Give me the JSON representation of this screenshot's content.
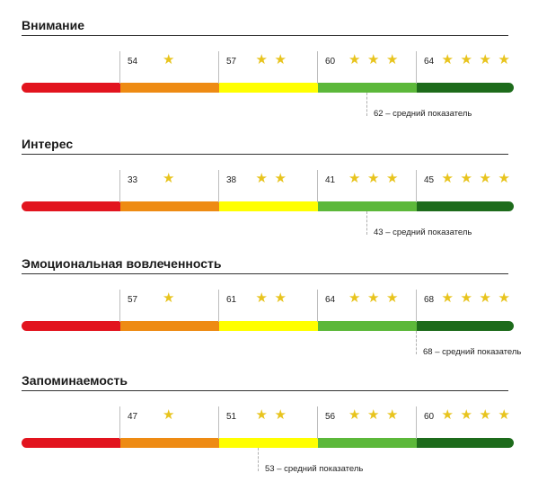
{
  "colors": {
    "red": "#e2141e",
    "orange": "#ee8b13",
    "yellow": "#ffff00",
    "lightgreen": "#5cb83a",
    "darkgreen": "#1d6b1b",
    "star": "#e8c41e"
  },
  "chart_data": [
    {
      "type": "bar",
      "title": "Внимание",
      "thresholds": [
        54,
        57,
        60,
        64
      ],
      "stars": [
        1,
        2,
        3,
        4
      ],
      "average": 62,
      "average_label": "62 – средний показатель"
    },
    {
      "type": "bar",
      "title": "Интерес",
      "thresholds": [
        33,
        38,
        41,
        45
      ],
      "stars": [
        1,
        2,
        3,
        4
      ],
      "average": 43,
      "average_label": "43 – средний показатель"
    },
    {
      "type": "bar",
      "title": "Эмоциональная вовлеченность",
      "thresholds": [
        57,
        61,
        64,
        68
      ],
      "stars": [
        1,
        2,
        3,
        4
      ],
      "average": 68,
      "average_label": "68 – средний показатель"
    },
    {
      "type": "bar",
      "title": "Запоминаемость",
      "thresholds": [
        47,
        51,
        56,
        60
      ],
      "stars": [
        1,
        2,
        3,
        4
      ],
      "average": 53,
      "average_label": "53 – средний показатель"
    }
  ]
}
